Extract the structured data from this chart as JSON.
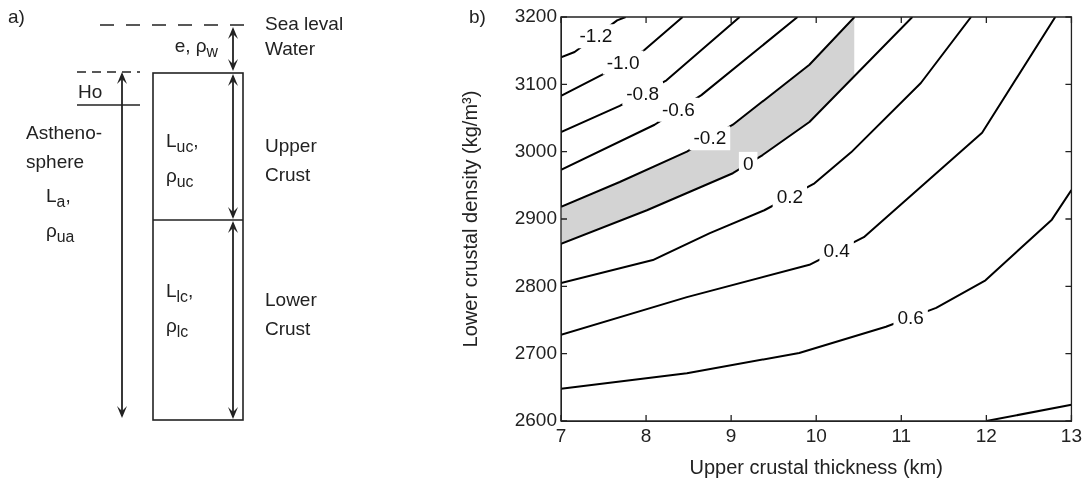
{
  "chart_data": [
    {
      "type": "other",
      "title": "a)",
      "annotations": [
        "Sea leval",
        "Water",
        "e, ρ$_{w}$",
        "Ho",
        "Astheno-sphere",
        "L$_{a}$, ρ$_{ua}$",
        "L$_{uc}$, ρ$_{uc}$",
        "Upper Crust",
        "L$_{lc}$, ρ$_{lc}$",
        "Lower Crust"
      ]
    },
    {
      "type": "line",
      "title": "b)",
      "xlabel": "Upper crustal thickness (km)",
      "ylabel": "Lower crustal density (kg/m³)",
      "xlim": [
        7,
        13
      ],
      "ylim": [
        2600,
        3200
      ],
      "xticks": [
        7,
        8,
        9,
        10,
        11,
        12,
        13
      ],
      "yticks": [
        2600,
        2700,
        2800,
        2900,
        3000,
        3100,
        3200
      ],
      "legend": false,
      "grid": false,
      "marker": "none",
      "series": [
        {
          "name": "-1.2",
          "color": "#000000",
          "x": [
            7,
            7.16,
            7.41,
            7.66,
            7.76
          ],
          "values": [
            3140,
            3148,
            null,
            3195,
            3200
          ]
        },
        {
          "name": "-1.0",
          "color": "#000000",
          "x": [
            7,
            7.48,
            7.73,
            7.98,
            8.43
          ],
          "values": [
            3083,
            3114,
            null,
            3151,
            3200
          ]
        },
        {
          "name": "-0.8",
          "color": "#000000",
          "x": [
            7,
            7.69,
            7.96,
            8.24,
            9.1
          ],
          "values": [
            3029,
            3068,
            null,
            3106,
            3200
          ]
        },
        {
          "name": "-0.6",
          "color": "#000000",
          "x": [
            7,
            8.1,
            8.38,
            8.65,
            9.78
          ],
          "values": [
            2973,
            3040,
            null,
            3084,
            3200
          ]
        },
        {
          "name": "-0.2",
          "color": "#000000",
          "x": [
            7,
            7.69,
            8.48,
            8.75,
            9.02,
            9.92,
            10.45
          ],
          "values": [
            2918,
            2955,
            3000,
            null,
            3040,
            3129,
            3200
          ]
        },
        {
          "name": "0",
          "color": "#000000",
          "x": [
            7,
            8.01,
            9.02,
            9.2,
            9.37,
            9.92,
            11.13
          ],
          "values": [
            2863,
            2913,
            2968,
            null,
            2995,
            3044,
            3200
          ]
        },
        {
          "name": "0.2",
          "color": "#000000",
          "x": [
            7,
            8.08,
            8.75,
            9.39,
            9.69,
            9.98,
            10.41,
            11.23,
            11.82
          ],
          "values": [
            2805,
            2839,
            2879,
            2913,
            null,
            2953,
            2999,
            3102,
            3200
          ]
        },
        {
          "name": "0.4",
          "color": "#000000",
          "x": [
            7,
            8.48,
            9.92,
            10.24,
            10.56,
            11.95,
            12.81
          ],
          "values": [
            2728,
            2784,
            2832,
            null,
            2873,
            3028,
            3200
          ]
        },
        {
          "name": "0.6",
          "color": "#000000",
          "x": [
            7,
            8.48,
            9.8,
            10.82,
            11.11,
            11.41,
            11.99,
            12.77,
            13
          ],
          "values": [
            2648,
            2671,
            2701,
            2740,
            null,
            2768,
            2809,
            2899,
            2943
          ]
        },
        {
          "color": "#000000",
          "x": [
            12,
            13
          ],
          "values": [
            2600,
            2624
          ]
        }
      ]
    }
  ]
}
